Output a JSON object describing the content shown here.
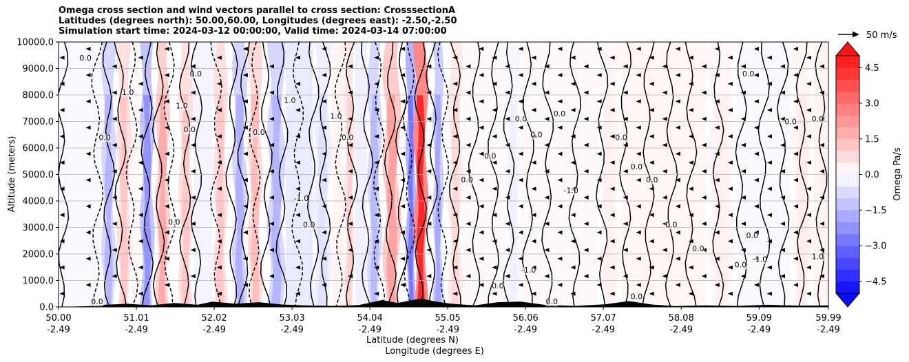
{
  "chart_data": {
    "type": "contour-cross-section",
    "title_lines": [
      "Omega cross section and wind vectors parallel to cross section: CrosssectionA",
      "Latitudes (degrees north): 50.00,60.00, Longitudes (degrees east): -2.50,-2.50",
      "Simulation start time: 2024-03-12 00:00:00, Valid time: 2024-03-14 07:00:00"
    ],
    "ylabel": "Altitude (meters)",
    "xlabel_lat": "Latitude (degrees N)",
    "xlabel_lon": "Longitude (degrees E)",
    "ylim": [
      0,
      10000
    ],
    "yticks": [
      "0.0",
      "1000.0",
      "2000.0",
      "3000.0",
      "4000.0",
      "5000.0",
      "6000.0",
      "7000.0",
      "8000.0",
      "9000.0",
      "10000.0"
    ],
    "ytick_values": [
      0,
      1000,
      2000,
      3000,
      4000,
      5000,
      6000,
      7000,
      8000,
      9000,
      10000
    ],
    "xlim": [
      50.0,
      59.99
    ],
    "xticks_lat": [
      "50.00",
      "51.01",
      "52.02",
      "53.03",
      "54.04",
      "55.05",
      "56.06",
      "57.07",
      "58.08",
      "59.09",
      "59.99"
    ],
    "xticks_lon": [
      "-2.49",
      "-2.49",
      "-2.49",
      "-2.49",
      "-2.49",
      "-2.49",
      "-2.49",
      "-2.49",
      "-2.49",
      "-2.49",
      "-2.49"
    ],
    "xtick_values": [
      50.0,
      51.01,
      52.02,
      53.03,
      54.04,
      55.05,
      56.06,
      57.07,
      58.08,
      59.09,
      59.99
    ],
    "colorbar": {
      "label": "Omega Pa/s",
      "range": [
        -5.0,
        5.0
      ],
      "ticks": [
        "4.5",
        "3.0",
        "1.5",
        "0.0",
        "−1.5",
        "−3.0",
        "−4.5"
      ],
      "tick_values": [
        4.5,
        3.0,
        1.5,
        0.0,
        -1.5,
        -3.0,
        -4.5
      ],
      "extend": "both"
    },
    "quiver_key": "50 m/s",
    "omega_bands": [
      {
        "lat_from": 50.55,
        "lat_to": 50.75,
        "omega": -1.5
      },
      {
        "lat_from": 50.75,
        "lat_to": 50.95,
        "omega": 1.2
      },
      {
        "lat_from": 51.05,
        "lat_to": 51.25,
        "omega": -2.2
      },
      {
        "lat_from": 51.25,
        "lat_to": 51.45,
        "omega": 1.8
      },
      {
        "lat_from": 51.55,
        "lat_to": 51.75,
        "omega": 1.2
      },
      {
        "lat_from": 52.0,
        "lat_to": 52.2,
        "omega": 1.2
      },
      {
        "lat_from": 52.25,
        "lat_to": 52.45,
        "omega": -1.6
      },
      {
        "lat_from": 52.45,
        "lat_to": 52.65,
        "omega": 1.4
      },
      {
        "lat_from": 52.7,
        "lat_to": 52.95,
        "omega": -1.5
      },
      {
        "lat_from": 53.3,
        "lat_to": 53.55,
        "omega": -0.6
      },
      {
        "lat_from": 53.7,
        "lat_to": 53.85,
        "omega": 1.0
      },
      {
        "lat_from": 54.0,
        "lat_to": 54.2,
        "omega": -1.4
      },
      {
        "lat_from": 54.2,
        "lat_to": 54.45,
        "omega": 2.0
      },
      {
        "lat_from": 54.5,
        "lat_to": 54.65,
        "omega": -2.8
      },
      {
        "lat_from": 54.6,
        "lat_to": 54.8,
        "omega": 4.6
      },
      {
        "lat_from": 54.85,
        "lat_to": 55.0,
        "omega": -1.8
      },
      {
        "lat_from": 55.05,
        "lat_to": 55.25,
        "omega": 0.8
      },
      {
        "lat_from": 55.8,
        "lat_to": 56.0,
        "omega": -0.3
      },
      {
        "lat_from": 57.0,
        "lat_to": 57.3,
        "omega": 0.3
      },
      {
        "lat_from": 58.4,
        "lat_to": 58.8,
        "omega": 0.3
      },
      {
        "lat_from": 59.5,
        "lat_to": 59.8,
        "omega": 0.4
      }
    ],
    "contour_labels": [
      {
        "lat": 50.35,
        "alt": 9300,
        "text": "0.0"
      },
      {
        "lat": 50.6,
        "alt": 6300,
        "text": "0.0"
      },
      {
        "lat": 50.9,
        "alt": 8000,
        "text": "1.0"
      },
      {
        "lat": 51.6,
        "alt": 7500,
        "text": "1.0"
      },
      {
        "lat": 51.7,
        "alt": 6600,
        "text": "0.0"
      },
      {
        "lat": 51.78,
        "alt": 8700,
        "text": "0.0"
      },
      {
        "lat": 51.5,
        "alt": 3100,
        "text": "0.0"
      },
      {
        "lat": 52.6,
        "alt": 6500,
        "text": "0.0"
      },
      {
        "lat": 53.15,
        "alt": 4000,
        "text": "-1.0"
      },
      {
        "lat": 53.25,
        "alt": 3000,
        "text": "0.0"
      },
      {
        "lat": 53.0,
        "alt": 7700,
        "text": "1.0"
      },
      {
        "lat": 53.6,
        "alt": 7100,
        "text": "1.0"
      },
      {
        "lat": 53.75,
        "alt": 6300,
        "text": "0.0"
      },
      {
        "lat": 55.3,
        "alt": 4700,
        "text": "0.0"
      },
      {
        "lat": 55.6,
        "alt": 5600,
        "text": "0.0"
      },
      {
        "lat": 56.0,
        "alt": 7000,
        "text": "0.0"
      },
      {
        "lat": 56.2,
        "alt": 6400,
        "text": "0.0"
      },
      {
        "lat": 56.5,
        "alt": 7200,
        "text": "0.0"
      },
      {
        "lat": 56.65,
        "alt": 4300,
        "text": "-1.0"
      },
      {
        "lat": 56.1,
        "alt": 1300,
        "text": "-1.0"
      },
      {
        "lat": 57.3,
        "alt": 6300,
        "text": "0.0"
      },
      {
        "lat": 57.5,
        "alt": 5200,
        "text": "0.0"
      },
      {
        "lat": 57.7,
        "alt": 4700,
        "text": "0.0"
      },
      {
        "lat": 57.95,
        "alt": 3000,
        "text": "0.0"
      },
      {
        "lat": 58.3,
        "alt": 2100,
        "text": "0.0"
      },
      {
        "lat": 58.95,
        "alt": 8700,
        "text": "0.0"
      },
      {
        "lat": 58.85,
        "alt": 1500,
        "text": "0.0"
      },
      {
        "lat": 59.1,
        "alt": 1700,
        "text": "-1.0"
      },
      {
        "lat": 59.5,
        "alt": 6900,
        "text": "0.0"
      },
      {
        "lat": 59.85,
        "alt": 7000,
        "text": "0.0"
      },
      {
        "lat": 59.85,
        "alt": 1800,
        "text": "1.0"
      },
      {
        "lat": 59.0,
        "alt": 2600,
        "text": "0.0"
      },
      {
        "lat": 50.5,
        "alt": 100,
        "text": "0.0"
      },
      {
        "lat": 55.7,
        "alt": 700,
        "text": "0.0"
      },
      {
        "lat": 56.4,
        "alt": 100,
        "text": "0.0"
      },
      {
        "lat": 57.5,
        "alt": 300,
        "text": "0.0"
      }
    ]
  }
}
